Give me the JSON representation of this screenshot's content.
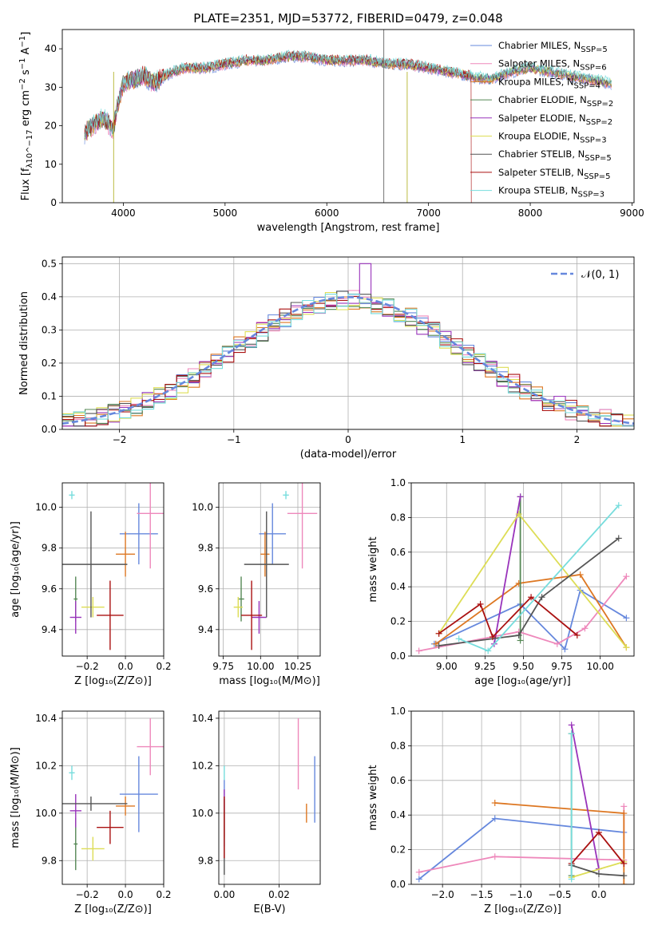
{
  "figure": {
    "title": "PLATE=2351, MJD=53772, FIBERID=0479, z=0.048"
  },
  "legend_colors": [
    "#6688dd",
    "#ee88bb",
    "#dd7722",
    "#558855",
    "#9933bb",
    "#dddd55",
    "#555555",
    "#aa1111",
    "#77dddd"
  ],
  "chart_data": [
    {
      "id": "spectrum",
      "type": "line",
      "xlabel": "wavelength [Angstrom, rest frame]",
      "ylabel": "Flux [f_λ10^−17 erg cm^−2 s^−1 A^−1]",
      "xlim": [
        3400,
        9020
      ],
      "ylim": [
        0,
        45
      ],
      "xticks": [
        4000,
        5000,
        6000,
        7000,
        8000,
        9000
      ],
      "yticks": [
        0,
        10,
        20,
        30,
        40
      ],
      "grid": false,
      "legend_position": "top-right",
      "series": [
        {
          "name": "Chabrier MILES, N_SSP=5",
          "color": "#6688dd"
        },
        {
          "name": "Salpeter MILES, N_SSP=6",
          "color": "#ee88bb"
        },
        {
          "name": "Kroupa MILES, N_SSP=4",
          "color": "#dd7722"
        },
        {
          "name": "Chabrier ELODIE, N_SSP=2",
          "color": "#558855"
        },
        {
          "name": "Salpeter ELODIE, N_SSP=2",
          "color": "#9933bb"
        },
        {
          "name": "Kroupa ELODIE, N_SSP=3",
          "color": "#dddd55"
        },
        {
          "name": "Chabrier STELIB, N_SSP=5",
          "color": "#555555"
        },
        {
          "name": "Salpeter STELIB, N_SSP=5",
          "color": "#aa1111"
        },
        {
          "name": "Kroupa STELIB, N_SSP=3",
          "color": "#77dddd"
        }
      ],
      "continuum_x": [
        3620,
        3700,
        3800,
        3900,
        3950,
        4000,
        4100,
        4200,
        4300,
        4400,
        4500,
        4600,
        4800,
        5000,
        5200,
        5400,
        5600,
        5800,
        6000,
        6200,
        6400,
        6600,
        6800,
        7000,
        7200,
        7400,
        7600,
        7800,
        8000,
        8200,
        8400,
        8600,
        8800
      ],
      "continuum_y": [
        18,
        20,
        22,
        19,
        26,
        31,
        32,
        33,
        31,
        33,
        34,
        35,
        35,
        36,
        37,
        37,
        38,
        38,
        37,
        37,
        37,
        36,
        36,
        35,
        34,
        33,
        32,
        34,
        35,
        34,
        33,
        32,
        31
      ]
    },
    {
      "id": "residual-histogram",
      "type": "histogram",
      "xlabel": "(data-model)/error",
      "ylabel": "Normed distribution",
      "xlim": [
        -2.5,
        2.5
      ],
      "ylim": [
        0,
        0.52
      ],
      "xticks": [
        -2,
        -1,
        0,
        1,
        2
      ],
      "yticks": [
        0.0,
        0.1,
        0.2,
        0.3,
        0.4,
        0.5
      ],
      "grid": true,
      "bin_width": 0.1,
      "reference_curve": {
        "name": "𝒩(0, 1)",
        "mean": 0,
        "sigma": 1,
        "color": "#6688dd"
      }
    },
    {
      "id": "age-vs-Z",
      "type": "errorbar",
      "xlabel": "Z [log10(Z/Z⊙)]",
      "ylabel": "age [log10(age/yr)]",
      "xlim": [
        -0.33,
        0.2
      ],
      "ylim": [
        9.27,
        10.12
      ],
      "xticks": [
        -0.2,
        0.0,
        0.2
      ],
      "yticks": [
        9.4,
        9.6,
        9.8,
        10.0
      ],
      "points": [
        {
          "x": 0.07,
          "xerr": 0.1,
          "y": 9.87,
          "yerr": 0.15,
          "color": "#6688dd"
        },
        {
          "x": 0.13,
          "xerr": 0.07,
          "y": 9.97,
          "yerr": 0.27,
          "color": "#ee88bb"
        },
        {
          "x": -0.0,
          "xerr": 0.05,
          "y": 9.77,
          "yerr": 0.11,
          "color": "#dd7722"
        },
        {
          "x": -0.26,
          "xerr": 0.01,
          "y": 9.55,
          "yerr": 0.11,
          "color": "#558855"
        },
        {
          "x": -0.26,
          "xerr": 0.03,
          "y": 9.46,
          "yerr": 0.08,
          "color": "#9933bb"
        },
        {
          "x": -0.17,
          "xerr": 0.06,
          "y": 9.51,
          "yerr": 0.05,
          "color": "#dddd55"
        },
        {
          "x": -0.18,
          "xerr": 0.19,
          "y": 9.72,
          "yerr": 0.26,
          "color": "#555555"
        },
        {
          "x": -0.08,
          "xerr": 0.07,
          "y": 9.47,
          "yerr": 0.17,
          "color": "#aa1111"
        },
        {
          "x": -0.28,
          "xerr": 0.015,
          "y": 10.06,
          "yerr": 0.02,
          "color": "#77dddd"
        }
      ]
    },
    {
      "id": "age-vs-mass",
      "type": "errorbar",
      "xlabel": "mass [log10(M/M⊙)]",
      "ylabel": "",
      "xlim": [
        9.72,
        10.4
      ],
      "ylim": [
        9.27,
        10.12
      ],
      "xticks": [
        9.75,
        10.0,
        10.25
      ],
      "yticks": [
        9.4,
        9.6,
        9.8,
        10.0
      ],
      "points": [
        {
          "x": 10.08,
          "xerr": 0.09,
          "y": 9.87,
          "yerr": 0.15,
          "color": "#6688dd"
        },
        {
          "x": 10.28,
          "xerr": 0.1,
          "y": 9.97,
          "yerr": 0.27,
          "color": "#ee88bb"
        },
        {
          "x": 10.03,
          "xerr": 0.03,
          "y": 9.77,
          "yerr": 0.11,
          "color": "#dd7722"
        },
        {
          "x": 9.87,
          "xerr": 0.02,
          "y": 9.55,
          "yerr": 0.11,
          "color": "#558855"
        },
        {
          "x": 9.99,
          "xerr": 0.05,
          "y": 9.46,
          "yerr": 0.08,
          "color": "#9933bb"
        },
        {
          "x": 9.85,
          "xerr": 0.03,
          "y": 9.51,
          "yerr": 0.05,
          "color": "#dddd55"
        },
        {
          "x": 10.04,
          "xerr": 0.15,
          "y": 9.72,
          "yerr": 0.26,
          "color": "#555555"
        },
        {
          "x": 9.94,
          "xerr": 0.07,
          "y": 9.47,
          "yerr": 0.17,
          "color": "#aa1111"
        },
        {
          "x": 10.17,
          "xerr": 0.02,
          "y": 10.06,
          "yerr": 0.02,
          "color": "#77dddd"
        }
      ]
    },
    {
      "id": "massweight-vs-age",
      "type": "line",
      "xlabel": "age [log10(age/yr)]",
      "ylabel": "mass weight",
      "xlim": [
        8.77,
        10.22
      ],
      "ylim": [
        0,
        1.0
      ],
      "xticks": [
        9.0,
        9.25,
        9.5,
        9.75,
        10.0
      ],
      "yticks": [
        0.0,
        0.2,
        0.4,
        0.6,
        0.8,
        1.0
      ],
      "grid": true,
      "series": [
        {
          "color": "#6688dd",
          "x": [
            8.92,
            9.48,
            9.77,
            9.87,
            10.17
          ],
          "y": [
            0.07,
            0.3,
            0.04,
            0.38,
            0.22
          ]
        },
        {
          "color": "#ee88bb",
          "x": [
            8.82,
            9.47,
            9.72,
            9.9,
            10.17
          ],
          "y": [
            0.03,
            0.14,
            0.07,
            0.16,
            0.46
          ]
        },
        {
          "color": "#dd7722",
          "x": [
            8.93,
            9.47,
            9.87,
            10.17
          ],
          "y": [
            0.07,
            0.42,
            0.47,
            0.05
          ]
        },
        {
          "color": "#558855",
          "x": [
            9.48,
            9.48
          ],
          "y": [
            0.09,
            0.92
          ]
        },
        {
          "color": "#9933bb",
          "x": [
            9.31,
            9.48
          ],
          "y": [
            0.07,
            0.92
          ]
        },
        {
          "color": "#dddd55",
          "x": [
            8.95,
            9.47,
            10.17
          ],
          "y": [
            0.13,
            0.82,
            0.05
          ]
        },
        {
          "color": "#555555",
          "x": [
            8.95,
            9.47,
            9.62,
            10.12
          ],
          "y": [
            0.06,
            0.12,
            0.34,
            0.68
          ]
        },
        {
          "color": "#aa1111",
          "x": [
            8.95,
            9.22,
            9.3,
            9.55,
            9.85
          ],
          "y": [
            0.13,
            0.3,
            0.11,
            0.34,
            0.12
          ]
        },
        {
          "color": "#77dddd",
          "x": [
            9.08,
            9.27,
            10.12
          ],
          "y": [
            0.1,
            0.03,
            0.87
          ]
        }
      ]
    },
    {
      "id": "mass-vs-Z",
      "type": "errorbar",
      "xlabel": "Z [log10(Z/Z⊙)]",
      "ylabel": "mass [log10(M/M⊙)]",
      "xlim": [
        -0.33,
        0.2
      ],
      "ylim": [
        9.7,
        10.43
      ],
      "xticks": [
        -0.2,
        0.0,
        0.2
      ],
      "yticks": [
        9.8,
        10.0,
        10.2,
        10.4
      ],
      "points": [
        {
          "x": 0.07,
          "xerr": 0.1,
          "y": 10.08,
          "yerr": 0.16,
          "color": "#6688dd"
        },
        {
          "x": 0.13,
          "xerr": 0.07,
          "y": 10.28,
          "yerr": 0.12,
          "color": "#ee88bb"
        },
        {
          "x": -0.0,
          "xerr": 0.05,
          "y": 10.03,
          "yerr": 0.04,
          "color": "#dd7722"
        },
        {
          "x": -0.26,
          "xerr": 0.01,
          "y": 9.87,
          "yerr": 0.11,
          "color": "#558855"
        },
        {
          "x": -0.26,
          "xerr": 0.03,
          "y": 10.01,
          "yerr": 0.07,
          "color": "#9933bb"
        },
        {
          "x": -0.17,
          "xerr": 0.06,
          "y": 9.85,
          "yerr": 0.05,
          "color": "#dddd55"
        },
        {
          "x": -0.18,
          "xerr": 0.19,
          "y": 10.04,
          "yerr": 0.03,
          "color": "#555555"
        },
        {
          "x": -0.08,
          "xerr": 0.07,
          "y": 9.94,
          "yerr": 0.07,
          "color": "#aa1111"
        },
        {
          "x": -0.28,
          "xerr": 0.015,
          "y": 10.17,
          "yerr": 0.03,
          "color": "#77dddd"
        }
      ]
    },
    {
      "id": "mass-vs-ebv",
      "type": "errorbar",
      "xlabel": "E(B-V)",
      "ylabel": "",
      "xlim": [
        -0.002,
        0.035
      ],
      "ylim": [
        9.7,
        10.43
      ],
      "xticks": [
        0.0,
        0.02
      ],
      "yticks": [
        9.8,
        10.0,
        10.2,
        10.4
      ],
      "points": [
        {
          "x": 0.0,
          "y": 10.0,
          "yerr": 0.14,
          "color": "#6688dd"
        },
        {
          "x": 0.0,
          "y": 10.0,
          "yerr": 0.1,
          "color": "#9933bb"
        },
        {
          "x": 0.0,
          "y": 9.95,
          "yerr": 0.06,
          "color": "#dddd55"
        },
        {
          "x": 0.0,
          "y": 9.9,
          "yerr": 0.16,
          "color": "#555555"
        },
        {
          "x": 0.0,
          "y": 9.94,
          "yerr": 0.13,
          "color": "#aa1111"
        },
        {
          "x": 0.0,
          "y": 10.17,
          "yerr": 0.03,
          "color": "#77dddd"
        },
        {
          "x": 0.027,
          "y": 10.25,
          "yerr": 0.15,
          "color": "#ee88bb"
        },
        {
          "x": 0.03,
          "y": 10.0,
          "yerr": 0.04,
          "color": "#dd7722"
        },
        {
          "x": 0.033,
          "y": 10.1,
          "yerr": 0.14,
          "color": "#6688dd"
        }
      ]
    },
    {
      "id": "massweight-vs-Z",
      "type": "line",
      "xlabel": "Z [log10(Z/Z⊙)]",
      "ylabel": "mass weight",
      "xlim": [
        -2.4,
        0.45
      ],
      "ylim": [
        0,
        1.0
      ],
      "xticks": [
        -2.0,
        -1.5,
        -1.0,
        -0.5,
        0.0
      ],
      "yticks": [
        0.0,
        0.2,
        0.4,
        0.6,
        0.8,
        1.0
      ],
      "grid": true,
      "series": [
        {
          "color": "#6688dd",
          "x": [
            -2.3,
            -1.33,
            0.32
          ],
          "y": [
            0.03,
            0.38,
            0.3
          ]
        },
        {
          "color": "#ee88bb",
          "x": [
            -2.3,
            -1.33,
            0.32,
            0.32
          ],
          "y": [
            0.07,
            0.16,
            0.14,
            0.45
          ]
        },
        {
          "color": "#dd7722",
          "x": [
            -1.33,
            0.32,
            0.32
          ],
          "y": [
            0.47,
            0.41,
            0.0
          ]
        },
        {
          "color": "#558855",
          "x": [
            -0.35,
            -0.35
          ],
          "y": [
            0.05,
            0.87
          ]
        },
        {
          "color": "#9933bb",
          "x": [
            -0.35,
            0.0
          ],
          "y": [
            0.92,
            0.09
          ]
        },
        {
          "color": "#dddd55",
          "x": [
            -0.35,
            0.32
          ],
          "y": [
            0.04,
            0.13
          ]
        },
        {
          "color": "#555555",
          "x": [
            -0.35,
            0.0,
            0.32
          ],
          "y": [
            0.11,
            0.06,
            0.05
          ]
        },
        {
          "color": "#aa1111",
          "x": [
            -0.35,
            0.0,
            0.32
          ],
          "y": [
            0.12,
            0.3,
            0.12
          ]
        },
        {
          "color": "#77dddd",
          "x": [
            -0.35,
            -0.35
          ],
          "y": [
            0.03,
            0.87
          ]
        }
      ]
    }
  ]
}
